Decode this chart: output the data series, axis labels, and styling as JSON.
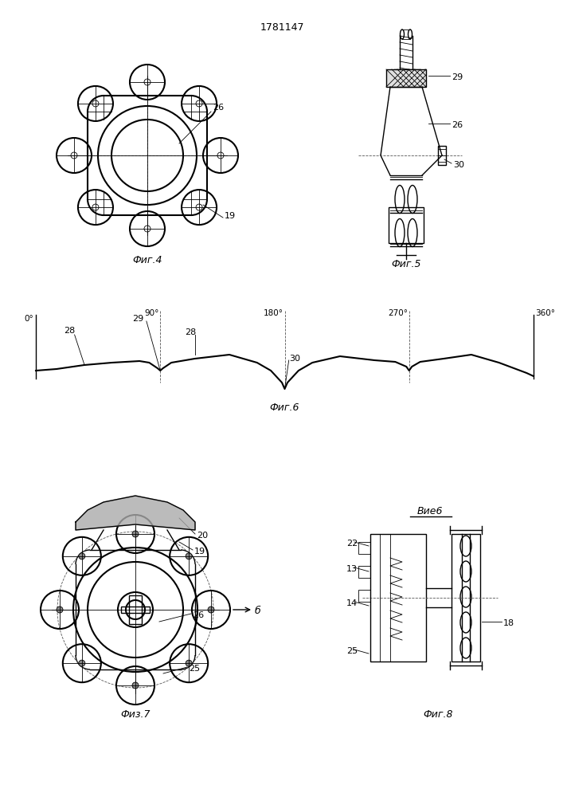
{
  "title": "1781147",
  "bg_color": "#ffffff",
  "line_color": "#000000",
  "fig4_label": "Фиг.4",
  "fig5_label": "Фиг.5",
  "fig6_label": "Фиг.6",
  "fig7_label": "Физ.7",
  "fig8_label": "Фиг.8",
  "vidb_label": "Вие6"
}
